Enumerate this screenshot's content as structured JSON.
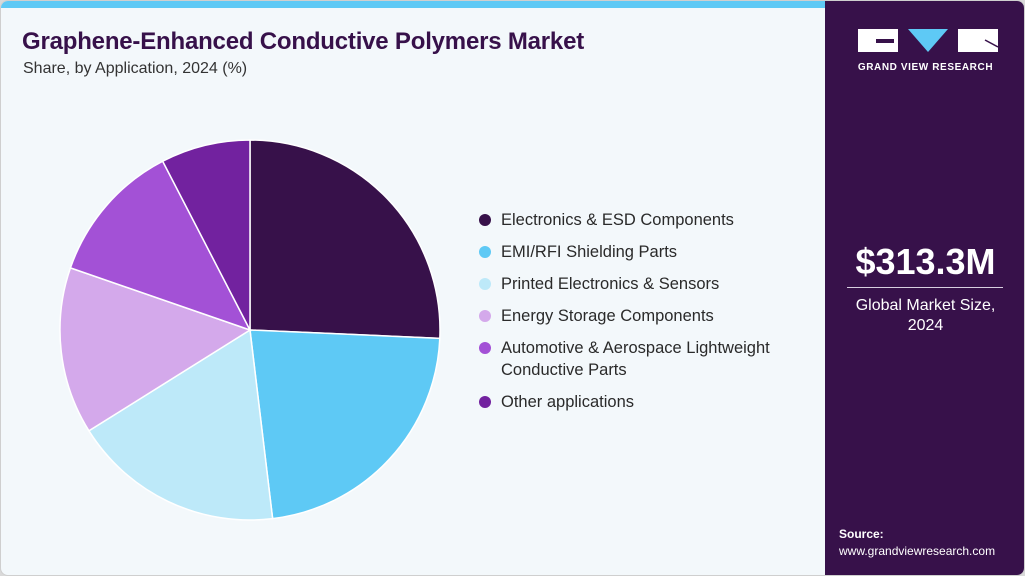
{
  "header": {
    "title": "Graphene-Enhanced Conductive Polymers Market",
    "subtitle": "Share, by Application, 2024 (%)"
  },
  "sidebar": {
    "logo_text": "GRAND VIEW RESEARCH",
    "market_value": "$313.3M",
    "market_label_line1": "Global Market Size,",
    "market_label_line2": "2024",
    "source_label": "Source:",
    "source_url": "www.grandviewresearch.com"
  },
  "colors": {
    "accent_bar": "#5ec9f5",
    "sidebar_bg": "#37114a",
    "title": "#37114a",
    "background": "#f3f8fb"
  },
  "legend": [
    {
      "label": "Electronics & ESD Components",
      "color": "#37114a"
    },
    {
      "label": "EMI/RFI Shielding Parts",
      "color": "#5ec9f5"
    },
    {
      "label": "Printed Electronics & Sensors",
      "color": "#bde9f9"
    },
    {
      "label": "Energy Storage Components",
      "color": "#d4a9eb"
    },
    {
      "label": "Automotive & Aerospace Lightweight Conductive Parts",
      "color": "#a351d6"
    },
    {
      "label": "Other applications",
      "color": "#72229f"
    }
  ],
  "chart_data": {
    "type": "pie",
    "title": "Graphene-Enhanced Conductive Polymers Market",
    "subtitle": "Share, by Application, 2024 (%)",
    "categories": [
      "Electronics & ESD Components",
      "EMI/RFI Shielding Parts",
      "Printed Electronics & Sensors",
      "Energy Storage Components",
      "Automotive & Aerospace Lightweight Conductive Parts",
      "Other applications"
    ],
    "values": [
      25.7,
      22.4,
      18.0,
      14.2,
      12.1,
      7.6
    ],
    "colors": [
      "#37114a",
      "#5ec9f5",
      "#bde9f9",
      "#d4a9eb",
      "#a351d6",
      "#72229f"
    ],
    "start_angle": "12 o'clock, clockwise",
    "legend_position": "right",
    "data_labels": false
  }
}
